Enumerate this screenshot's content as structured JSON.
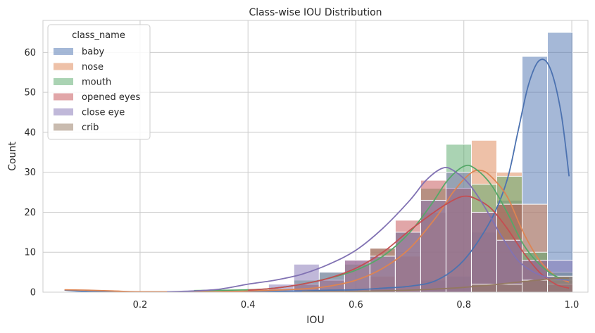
{
  "chart_data": {
    "type": "histogram",
    "title": "Class-wise IOU Distribution",
    "xlabel": "IOU",
    "ylabel": "Count",
    "xlim": [
      0.02,
      1.03
    ],
    "ylim": [
      0,
      68
    ],
    "xticks": [
      0.2,
      0.4,
      0.6,
      0.8,
      1.0
    ],
    "xtick_labels": [
      "0.2",
      "0.4",
      "0.6",
      "0.8",
      "1.0"
    ],
    "yticks": [
      0,
      10,
      20,
      30,
      40,
      50,
      60
    ],
    "ytick_labels": [
      "0",
      "10",
      "20",
      "30",
      "40",
      "50",
      "60"
    ],
    "grid": true,
    "legend": {
      "title": "class_name",
      "placement": "top-left"
    },
    "bin_edges": [
      0.438,
      0.485,
      0.532,
      0.579,
      0.626,
      0.673,
      0.72,
      0.767,
      0.814,
      0.861,
      0.908,
      0.955,
      1.002
    ],
    "series": [
      {
        "name": "baby",
        "color": "#4c72b0",
        "counts": [
          0,
          0,
          0,
          0,
          1,
          0,
          3,
          4,
          15,
          23,
          59,
          65
        ],
        "kde": [
          [
            0.06,
            0.5
          ],
          [
            0.1,
            0.2
          ],
          [
            0.2,
            0.1
          ],
          [
            0.3,
            0.1
          ],
          [
            0.4,
            0.15
          ],
          [
            0.5,
            0.3
          ],
          [
            0.55,
            0.5
          ],
          [
            0.6,
            0.6
          ],
          [
            0.65,
            1
          ],
          [
            0.7,
            1.5
          ],
          [
            0.75,
            3
          ],
          [
            0.8,
            8
          ],
          [
            0.85,
            18
          ],
          [
            0.88,
            28
          ],
          [
            0.9,
            40
          ],
          [
            0.92,
            52
          ],
          [
            0.94,
            58
          ],
          [
            0.96,
            56
          ],
          [
            0.98,
            45
          ],
          [
            0.995,
            29
          ]
        ]
      },
      {
        "name": "nose",
        "color": "#dd8452",
        "counts": [
          0,
          0,
          0,
          0,
          4,
          9,
          20,
          26,
          38,
          30,
          22,
          3
        ],
        "kde": [
          [
            0.06,
            0.6
          ],
          [
            0.1,
            0.5
          ],
          [
            0.15,
            0.3
          ],
          [
            0.2,
            0.1
          ],
          [
            0.3,
            0.1
          ],
          [
            0.4,
            0.3
          ],
          [
            0.5,
            0.8
          ],
          [
            0.55,
            1.5
          ],
          [
            0.6,
            3
          ],
          [
            0.65,
            6
          ],
          [
            0.7,
            11
          ],
          [
            0.75,
            19
          ],
          [
            0.78,
            25
          ],
          [
            0.81,
            29.5
          ],
          [
            0.83,
            30.5
          ],
          [
            0.85,
            29
          ],
          [
            0.88,
            24
          ],
          [
            0.91,
            15
          ],
          [
            0.94,
            8
          ],
          [
            0.97,
            4
          ],
          [
            0.995,
            2.5
          ]
        ]
      },
      {
        "name": "mouth",
        "color": "#55a868",
        "counts": [
          0,
          3,
          5,
          7,
          11,
          15,
          26,
          37,
          27,
          29,
          10,
          5
        ],
        "kde": [
          [
            0.3,
            0.4
          ],
          [
            0.4,
            0.6
          ],
          [
            0.45,
            1
          ],
          [
            0.5,
            2
          ],
          [
            0.55,
            3.5
          ],
          [
            0.6,
            5.5
          ],
          [
            0.65,
            9
          ],
          [
            0.7,
            15
          ],
          [
            0.74,
            22
          ],
          [
            0.77,
            28
          ],
          [
            0.8,
            31.5
          ],
          [
            0.82,
            31
          ],
          [
            0.85,
            27
          ],
          [
            0.88,
            20
          ],
          [
            0.91,
            12
          ],
          [
            0.94,
            7
          ],
          [
            0.97,
            4
          ],
          [
            0.995,
            3
          ]
        ]
      },
      {
        "name": "opened eyes",
        "color": "#c44e52",
        "counts": [
          0,
          2,
          3,
          8,
          11,
          18,
          28,
          26,
          20,
          22,
          8,
          2
        ],
        "kde": [
          [
            0.4,
            0.5
          ],
          [
            0.45,
            1
          ],
          [
            0.5,
            2
          ],
          [
            0.55,
            3.5
          ],
          [
            0.6,
            6
          ],
          [
            0.65,
            10
          ],
          [
            0.7,
            15.5
          ],
          [
            0.75,
            20.5
          ],
          [
            0.78,
            23
          ],
          [
            0.8,
            24
          ],
          [
            0.82,
            23.5
          ],
          [
            0.85,
            21
          ],
          [
            0.88,
            16
          ],
          [
            0.91,
            10
          ],
          [
            0.94,
            5
          ],
          [
            0.97,
            2
          ],
          [
            0.995,
            1
          ]
        ]
      },
      {
        "name": "close eye",
        "color": "#8172b3",
        "counts": [
          2,
          7,
          5,
          8,
          9,
          15,
          23,
          30,
          20,
          13,
          8,
          8
        ],
        "kde": [
          [
            0.25,
            0.1
          ],
          [
            0.3,
            0.3
          ],
          [
            0.35,
            0.8
          ],
          [
            0.4,
            2
          ],
          [
            0.45,
            3
          ],
          [
            0.5,
            4.5
          ],
          [
            0.55,
            7
          ],
          [
            0.6,
            10.5
          ],
          [
            0.65,
            16
          ],
          [
            0.7,
            23
          ],
          [
            0.73,
            28
          ],
          [
            0.76,
            31
          ],
          [
            0.78,
            30.5
          ],
          [
            0.81,
            27
          ],
          [
            0.84,
            21
          ],
          [
            0.87,
            14
          ],
          [
            0.9,
            8
          ],
          [
            0.93,
            5
          ],
          [
            0.96,
            3.5
          ],
          [
            0.995,
            3
          ]
        ]
      },
      {
        "name": "crib",
        "color": "#937860",
        "counts": [
          0,
          0,
          0,
          0,
          0,
          0,
          0,
          0,
          2,
          2,
          3,
          4
        ],
        "kde": [
          [
            0.5,
            0.1
          ],
          [
            0.6,
            0.2
          ],
          [
            0.7,
            0.5
          ],
          [
            0.75,
            0.8
          ],
          [
            0.8,
            1.2
          ],
          [
            0.85,
            1.8
          ],
          [
            0.9,
            2.5
          ],
          [
            0.95,
            3.2
          ],
          [
            0.98,
            3.5
          ],
          [
            0.995,
            3.5
          ]
        ]
      }
    ]
  }
}
